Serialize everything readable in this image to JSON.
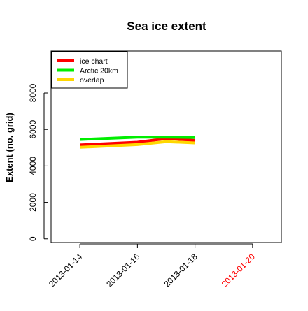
{
  "chart_data": {
    "type": "line",
    "title": "Sea ice extent",
    "xlabel": "",
    "ylabel": "Extent (no. grid)",
    "x": [
      "2013-01-14",
      "2013-01-16",
      "2013-01-17",
      "2013-01-18"
    ],
    "xlim": [
      "2013-01-13",
      "2013-01-21"
    ],
    "xticks": [
      {
        "label": "2013-01-14",
        "color": "#000000"
      },
      {
        "label": "2013-01-16",
        "color": "#000000"
      },
      {
        "label": "2013-01-18",
        "color": "#000000"
      },
      {
        "label": "2013-01-20",
        "color": "#ff0000"
      }
    ],
    "ylim": [
      -200,
      10300
    ],
    "yticks": [
      0,
      2000,
      4000,
      6000,
      8000
    ],
    "grid": false,
    "legend_position": "top-left",
    "series": [
      {
        "name": "ice chart",
        "color": "#ff0000",
        "values": [
          5150,
          5300,
          5500,
          5400
        ]
      },
      {
        "name": "Arctic 20km",
        "color": "#00ee00",
        "values": [
          5450,
          5580,
          5580,
          5560
        ]
      },
      {
        "name": "overlap",
        "color": "#ffd700",
        "values": [
          5020,
          5170,
          5330,
          5260
        ]
      }
    ]
  }
}
